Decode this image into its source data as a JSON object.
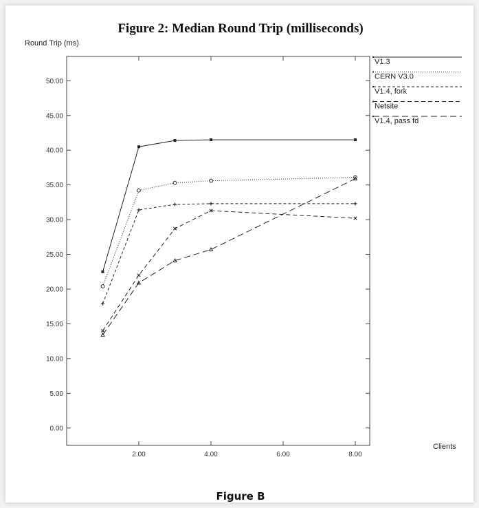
{
  "page": {
    "caption": "Figure B"
  },
  "chart_data": {
    "type": "line",
    "title": "Figure 2: Median Round Trip (milliseconds)",
    "ylabel": "Round Trip (ms)",
    "xlabel": "Clients",
    "x": [
      1,
      2,
      3,
      4,
      8
    ],
    "xticks": [
      2,
      4,
      6,
      8
    ],
    "xtick_labels": [
      "2.00",
      "4.00",
      "6.00",
      "8.00"
    ],
    "xlim": [
      0,
      8.4
    ],
    "ylim": [
      -2.5,
      53.5
    ],
    "yticks": [
      0,
      5,
      10,
      15,
      20,
      25,
      30,
      35,
      40,
      45,
      50
    ],
    "ytick_labels": [
      "0.00",
      "5.00",
      "10.00",
      "15.00",
      "20.00",
      "25.00",
      "30.00",
      "35.00",
      "40.00",
      "45.00",
      "50.00"
    ],
    "grid": false,
    "legend_position": "right",
    "series": [
      {
        "name": "V1.3",
        "values": [
          22.5,
          40.5,
          41.4,
          41.5,
          41.5
        ],
        "dash": "",
        "marker": "filled-square"
      },
      {
        "name": "CERN V3.0",
        "values": [
          20.4,
          34.2,
          35.3,
          35.6,
          36.1
        ],
        "dash": "1,2",
        "marker": "open-circle"
      },
      {
        "name": "V1.4, fork",
        "values": [
          17.9,
          31.4,
          32.2,
          32.3,
          32.3
        ],
        "dash": "4,3",
        "marker": "plus"
      },
      {
        "name": "Netsite",
        "values": [
          14.0,
          22.0,
          28.7,
          31.3,
          30.2
        ],
        "dash": "6,4",
        "marker": "x"
      },
      {
        "name": "V1.4, pass fd",
        "values": [
          13.4,
          20.9,
          24.1,
          25.7,
          35.9
        ],
        "dash": "9,5",
        "marker": "triangle"
      }
    ],
    "colors": {
      "line": "#222222",
      "axis": "#444444"
    }
  }
}
